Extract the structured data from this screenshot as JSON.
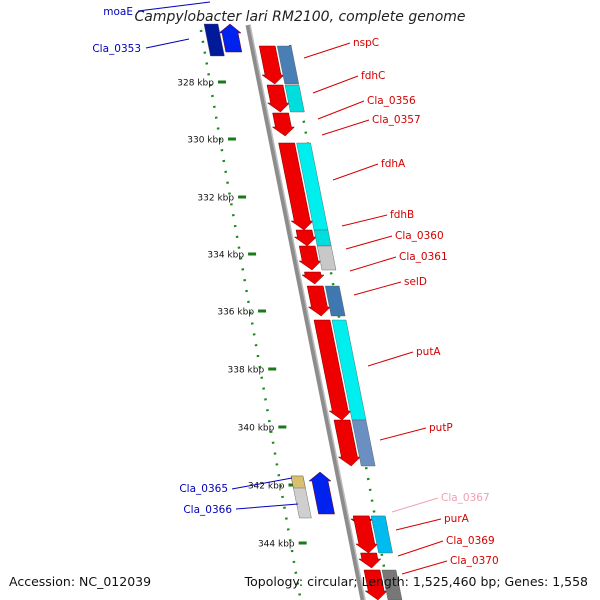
{
  "title": "Campylobacter lari RM2100, complete genome",
  "footer": {
    "accession": "Accession: NC_012039",
    "summary": "Topology: circular; Length: 1,525,460 bp; Genes: 1,558"
  },
  "colors": {
    "backbone": "#8c8c8c",
    "tick": "#1a7a1a",
    "dot": "#1a8a1a",
    "label_red": "#d40000",
    "label_blue": "#0000bb",
    "label_pink": "#f0a0b0"
  },
  "ticks": [
    "328 kbp",
    "330 kbp",
    "332 kbp",
    "334 kbp",
    "336 kbp",
    "338 kbp",
    "340 kbp",
    "342 kbp",
    "344 kbp"
  ],
  "genes_forward": [
    {
      "name": "nspC",
      "color": "red"
    },
    {
      "name": "fdhC",
      "color": "red"
    },
    {
      "name": "Cla_0356",
      "color": "red"
    },
    {
      "name": "Cla_0357",
      "color": "red"
    },
    {
      "name": "fdhA",
      "color": "red"
    },
    {
      "name": "fdhB",
      "color": "red"
    },
    {
      "name": "Cla_0360",
      "color": "red"
    },
    {
      "name": "Cla_0361",
      "color": "red"
    },
    {
      "name": "selD",
      "color": "red"
    },
    {
      "name": "putA",
      "color": "red"
    },
    {
      "name": "putP",
      "color": "red"
    },
    {
      "name": "Cla_0367",
      "color": "pink"
    },
    {
      "name": "purA",
      "color": "red"
    },
    {
      "name": "Cla_0369",
      "color": "red"
    },
    {
      "name": "Cla_0370",
      "color": "red"
    }
  ],
  "genes_reverse": [
    {
      "name": "moaE",
      "color": "blue"
    },
    {
      "name": "Cla_0353",
      "color": "blue"
    },
    {
      "name": "Cla_0365",
      "color": "blue"
    },
    {
      "name": "Cla_0366",
      "color": "blue"
    }
  ]
}
